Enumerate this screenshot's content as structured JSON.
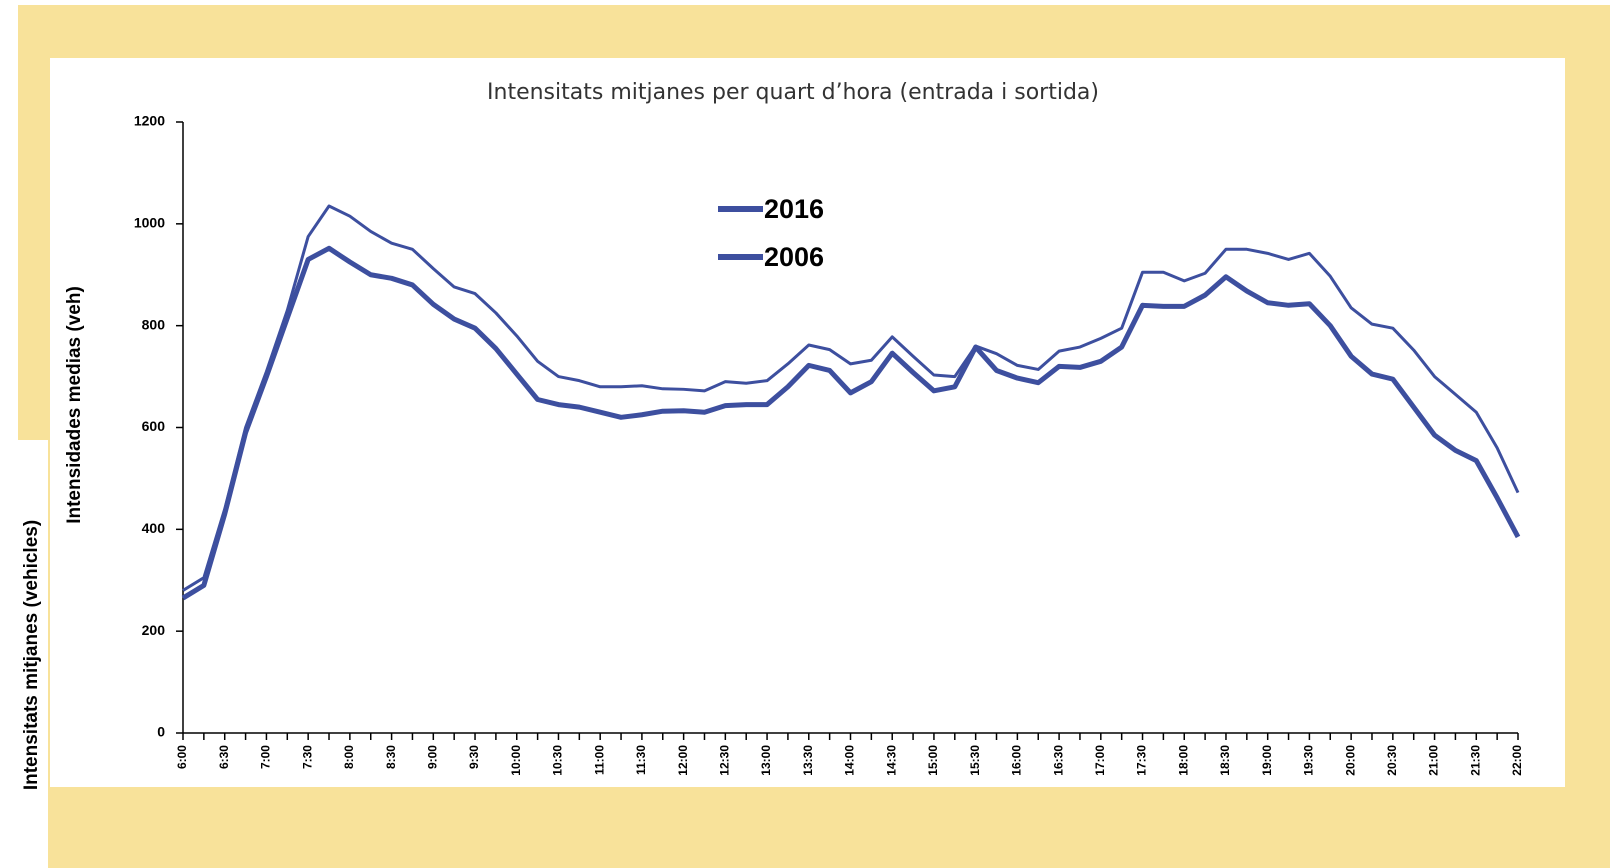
{
  "outer_label": "Intensitats  mitjanes  (vehicles)",
  "chart_data": {
    "type": "line",
    "title": "Intensitats mitjanes per quart d’hora (entrada i sortida)",
    "y_label": "Intensidades medias (veh)",
    "categories": [
      "6:00",
      null,
      "6:30",
      null,
      "7:00",
      null,
      "7:30",
      null,
      "8:00",
      null,
      "8:30",
      null,
      "9:00",
      null,
      "9:30",
      null,
      "10:00",
      null,
      "10:30",
      null,
      "11:00",
      null,
      "11:30",
      null,
      "12:00",
      null,
      "12:30",
      null,
      "13:00",
      null,
      "13:30",
      null,
      "14:00",
      null,
      "14:30",
      null,
      "15:00",
      null,
      "15:30",
      null,
      "16:00",
      null,
      "16:30",
      null,
      "17:00",
      null,
      "17:30",
      null,
      "18:00",
      null,
      "18:30",
      null,
      "19:00",
      null,
      "19:30",
      null,
      "20:00",
      null,
      "20:30",
      null,
      "21:00",
      null,
      "21:30",
      null,
      "22:00"
    ],
    "series": [
      {
        "name": "2016",
        "color": "#3d4f9f",
        "values": [
          280,
          305,
          440,
          600,
          710,
          830,
          975,
          1035,
          1015,
          985,
          962,
          950,
          912,
          876,
          863,
          825,
          780,
          730,
          700,
          692,
          680,
          680,
          682,
          676,
          675,
          672,
          690,
          687,
          692,
          725,
          762,
          753,
          725,
          732,
          778,
          740,
          703,
          700,
          760,
          745,
          722,
          714,
          750,
          758,
          775,
          795,
          905,
          905,
          888,
          903,
          950,
          950,
          942,
          930,
          942,
          897,
          835,
          803,
          795,
          752,
          700,
          665,
          630,
          560,
          472
        ]
      },
      {
        "name": "2006",
        "color": "#3d4f9f",
        "values": [
          265,
          290,
          430,
          590,
          700,
          815,
          930,
          952,
          925,
          900,
          893,
          880,
          842,
          813,
          795,
          755,
          705,
          655,
          645,
          640,
          630,
          620,
          625,
          632,
          633,
          630,
          643,
          645,
          645,
          680,
          722,
          712,
          668,
          690,
          746,
          708,
          672,
          680,
          758,
          712,
          697,
          688,
          720,
          718,
          730,
          758,
          840,
          838,
          838,
          860,
          896,
          868,
          845,
          840,
          843,
          800,
          740,
          705,
          695,
          640,
          585,
          555,
          535,
          462,
          385
        ]
      }
    ],
    "ylim": [
      0,
      1200
    ],
    "yticks": [
      0,
      200,
      400,
      600,
      800,
      1000,
      1200
    ],
    "grid": false
  }
}
